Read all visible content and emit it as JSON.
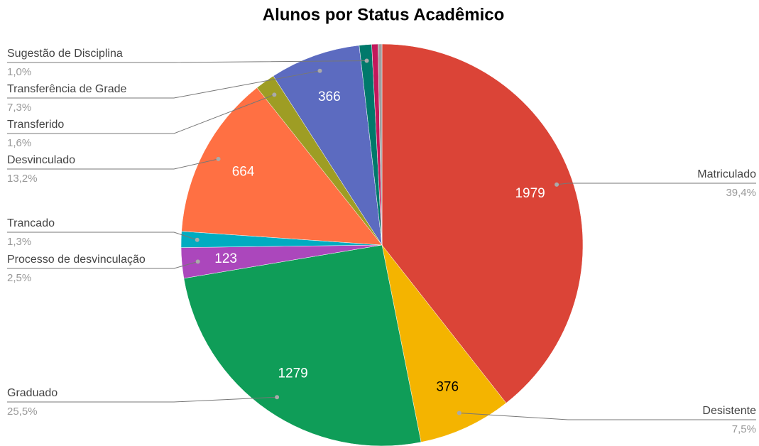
{
  "chart_data": {
    "type": "pie",
    "title": "Alunos por Status Acadêmico",
    "categories": [
      "Matriculado",
      "Desistente",
      "Graduado",
      "Processo de desvinculação",
      "Trancado",
      "Desvinculado",
      "Transferido",
      "Transferência de Grade",
      "Sugestão de Disciplina",
      null,
      null
    ],
    "values": [
      1979,
      376,
      1279,
      123,
      65,
      664,
      80,
      366,
      50,
      25,
      16
    ],
    "percent_labels": [
      "39,4%",
      "7,5%",
      "25,5%",
      "2,5%",
      "1,3%",
      "13,2%",
      "1,6%",
      "7,3%",
      "1,0%",
      null,
      null
    ],
    "colors": [
      "#db4437",
      "#f4b400",
      "#0f9d58",
      "#ab47bc",
      "#00acc1",
      "#ff7043",
      "#9e9d24",
      "#5c6bc0",
      "#00796b",
      "#c2185b",
      "#9e9e9e"
    ]
  }
}
